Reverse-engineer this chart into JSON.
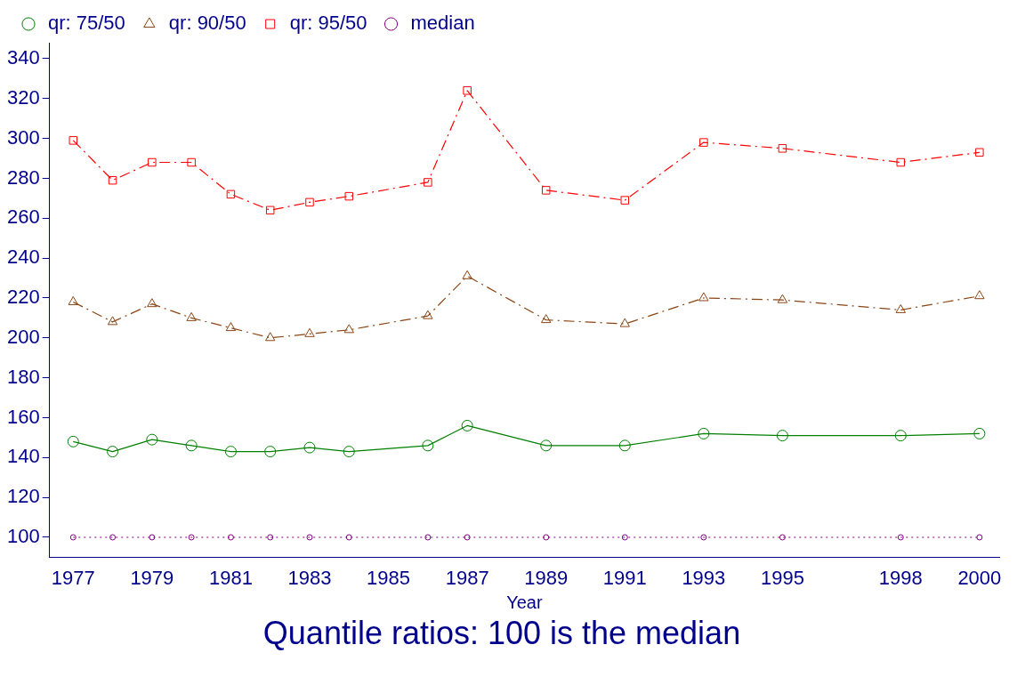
{
  "chart_data": {
    "type": "line",
    "title": "Quantile ratios: 100 is the median",
    "xlabel": "Year",
    "x": [
      1977,
      1978,
      1979,
      1980,
      1981,
      1982,
      1983,
      1984,
      1986,
      1987,
      1989,
      1991,
      1993,
      1995,
      1998,
      2000
    ],
    "series": [
      {
        "name": "qr: 75/50",
        "color": "#008000",
        "marker": "circle",
        "line_style": "solid",
        "values": [
          148,
          143,
          149,
          146,
          143,
          143,
          145,
          143,
          146,
          156,
          146,
          146,
          152,
          151,
          151,
          152
        ]
      },
      {
        "name": "qr: 90/50",
        "color": "#8b4513",
        "marker": "triangle",
        "line_style": "dashdot",
        "values": [
          218,
          208,
          217,
          210,
          205,
          200,
          202,
          204,
          211,
          231,
          209,
          207,
          220,
          219,
          214,
          221
        ]
      },
      {
        "name": "qr: 95/50",
        "color": "#ff0000",
        "marker": "square",
        "line_style": "dashdot",
        "values": [
          299,
          279,
          288,
          288,
          272,
          264,
          268,
          271,
          278,
          324,
          274,
          269,
          298,
          295,
          288,
          293
        ]
      },
      {
        "name": "median",
        "color": "#800080",
        "marker": "circle",
        "line_style": "dotted",
        "values": [
          100,
          100,
          100,
          100,
          100,
          100,
          100,
          100,
          100,
          100,
          100,
          100,
          100,
          100,
          100,
          100
        ]
      }
    ],
    "xlim": [
      1976.4,
      2000.5
    ],
    "xticks": [
      1977,
      1979,
      1981,
      1983,
      1985,
      1987,
      1989,
      1991,
      1993,
      1995,
      1998,
      2000
    ],
    "ylim": [
      90,
      348
    ],
    "yticks": [
      100,
      120,
      140,
      160,
      180,
      200,
      220,
      240,
      260,
      280,
      300,
      320,
      340
    ],
    "grid": false,
    "legend": "top"
  }
}
